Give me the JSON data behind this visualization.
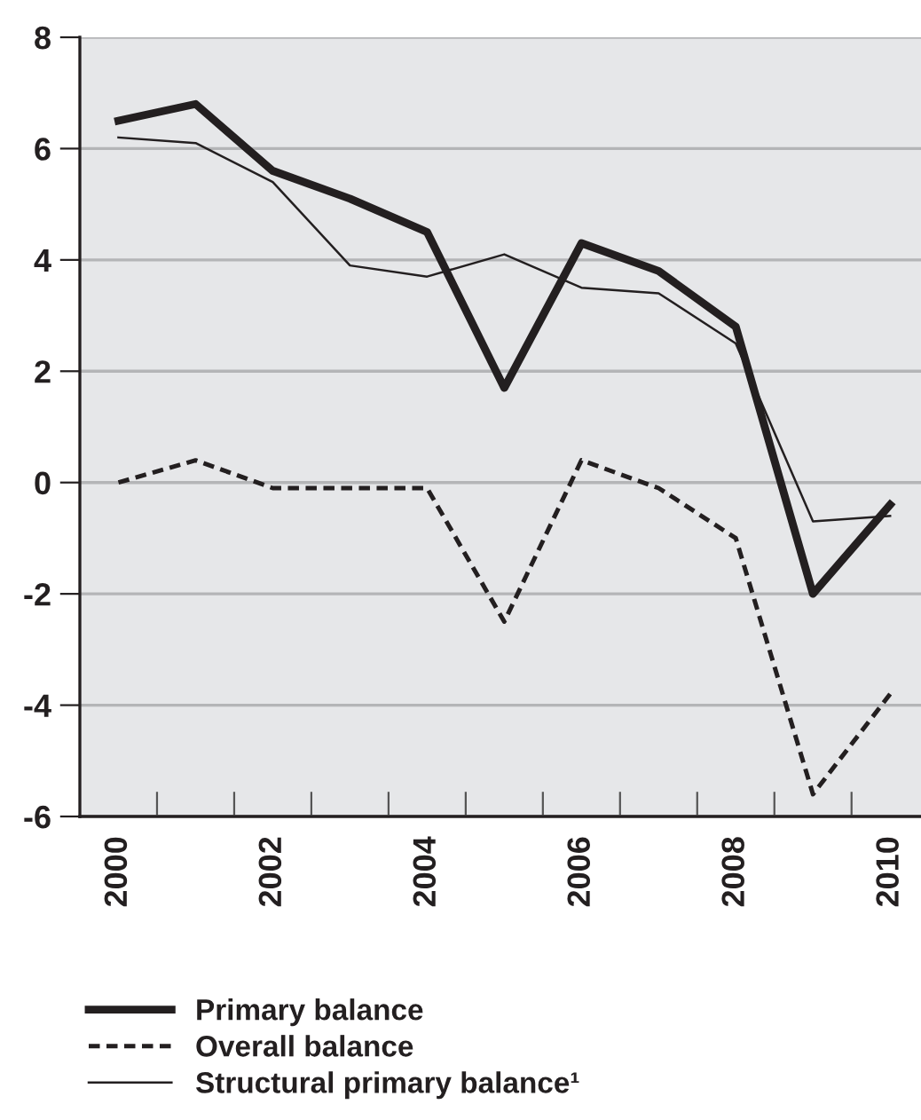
{
  "chart_data": {
    "type": "line",
    "x": [
      2000,
      2001,
      2002,
      2003,
      2004,
      2005,
      2006,
      2007,
      2008,
      2009,
      2010
    ],
    "series": [
      {
        "name": "Primary balance",
        "color": "#231f20",
        "values": [
          6.5,
          6.8,
          5.6,
          5.1,
          4.5,
          1.7,
          4.3,
          3.8,
          2.8,
          -2.0,
          -0.4
        ],
        "line_style": "solid"
      },
      {
        "name": "Overall balance",
        "color": "#231f20",
        "values": [
          0.0,
          0.4,
          -0.1,
          -0.1,
          -0.1,
          -2.5,
          0.4,
          -0.1,
          -1.0,
          -5.6,
          -3.8
        ],
        "line_style": "dashed"
      },
      {
        "name": "Structural primary balance¹",
        "color": "#231f20",
        "values": [
          6.2,
          6.1,
          5.4,
          3.9,
          3.7,
          4.1,
          3.5,
          3.4,
          2.5,
          -0.7,
          -0.6
        ],
        "line_style": "solid"
      }
    ],
    "xlim": [
      1999.5,
      2010.4
    ],
    "xticks": [
      2000,
      {
        "value": 2000.5,
        "label": null
      },
      {
        "value": 2001.5,
        "label": null
      },
      2002,
      {
        "value": 2002.5,
        "label": null
      },
      {
        "value": 2003.5,
        "label": null
      },
      2004,
      {
        "value": 2004.5,
        "label": null
      },
      {
        "value": 2005.5,
        "label": null
      },
      2006,
      {
        "value": 2006.5,
        "label": null
      },
      {
        "value": 2007.5,
        "label": null
      },
      2008,
      {
        "value": 2008.5,
        "label": null
      },
      {
        "value": 2009.5,
        "label": null
      },
      2010
    ],
    "ylim": [
      -6,
      8
    ],
    "yticks": [
      -6,
      -4,
      -2,
      0,
      2,
      4,
      6,
      8
    ],
    "grid": "y",
    "legend": "bottom left",
    "marker": "none"
  }
}
